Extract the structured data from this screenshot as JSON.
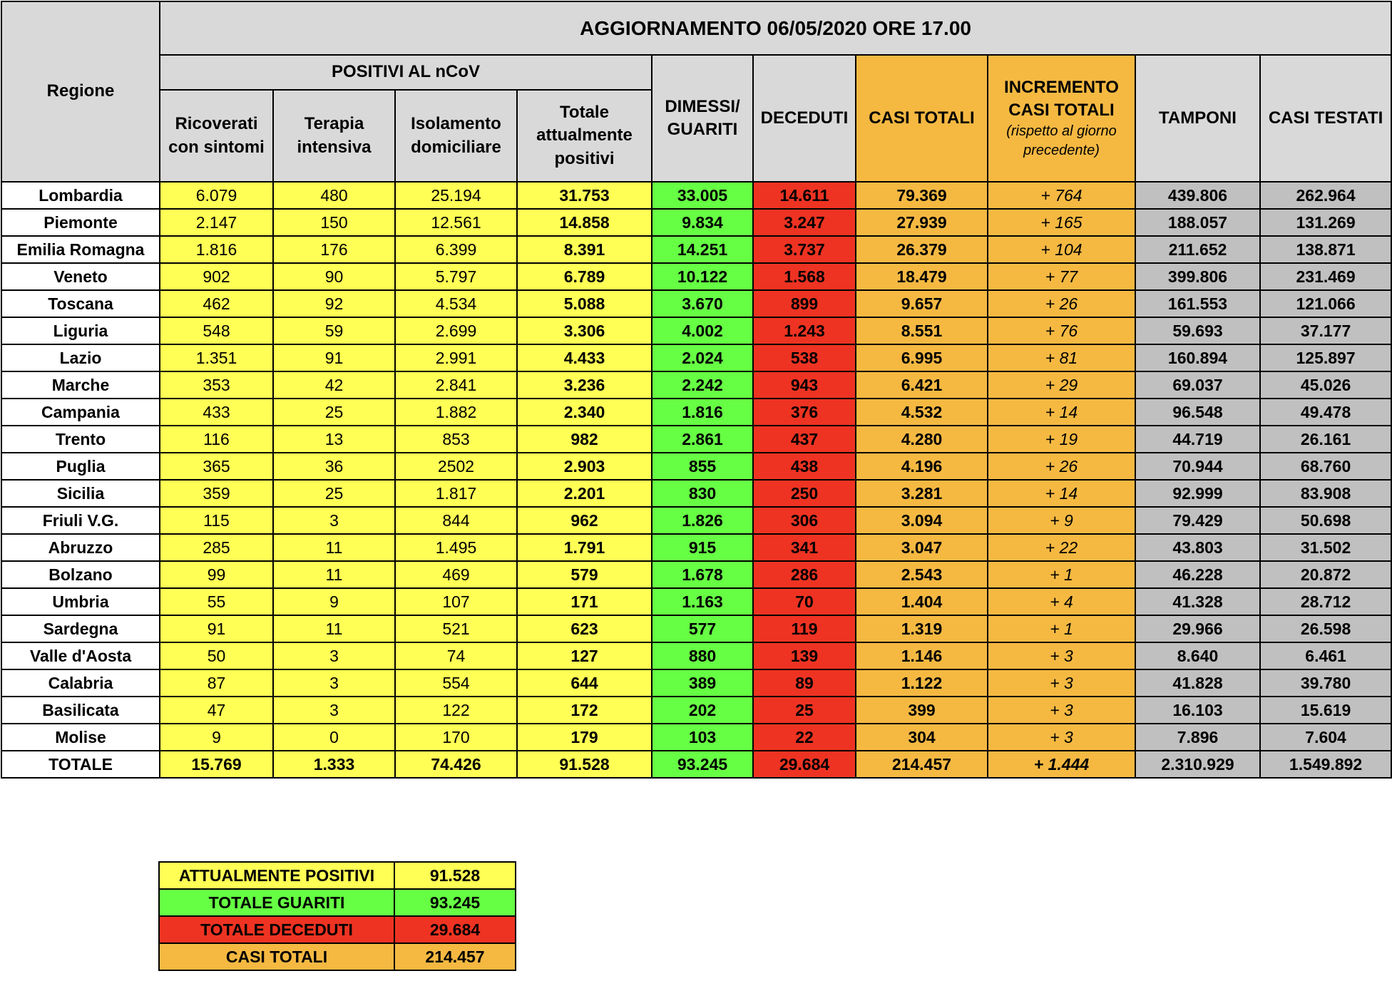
{
  "header": {
    "title": "AGGIORNAMENTO 06/05/2020 ORE 17.00",
    "regione": "Regione",
    "group": "POSITIVI AL nCoV",
    "columns": [
      "Ricoverati con sintomi",
      "Terapia intensiva",
      "Isolamento domiciliare",
      "Totale attualmente positivi",
      "DIMESSI/ GUARITI",
      "DECEDUTI",
      "CASI TOTALI",
      "INCREMENTO CASI TOTALI",
      "TAMPONI",
      "CASI TESTATI"
    ],
    "note": "(rispetto al giorno precedente)"
  },
  "table": {
    "rows": [
      [
        "Lombardia",
        "6.079",
        "480",
        "25.194",
        "31.753",
        "33.005",
        "14.611",
        "79.369",
        "+ 764",
        "439.806",
        "262.964"
      ],
      [
        "Piemonte",
        "2.147",
        "150",
        "12.561",
        "14.858",
        "9.834",
        "3.247",
        "27.939",
        "+ 165",
        "188.057",
        "131.269"
      ],
      [
        "Emilia Romagna",
        "1.816",
        "176",
        "6.399",
        "8.391",
        "14.251",
        "3.737",
        "26.379",
        "+ 104",
        "211.652",
        "138.871"
      ],
      [
        "Veneto",
        "902",
        "90",
        "5.797",
        "6.789",
        "10.122",
        "1.568",
        "18.479",
        "+ 77",
        "399.806",
        "231.469"
      ],
      [
        "Toscana",
        "462",
        "92",
        "4.534",
        "5.088",
        "3.670",
        "899",
        "9.657",
        "+ 26",
        "161.553",
        "121.066"
      ],
      [
        "Liguria",
        "548",
        "59",
        "2.699",
        "3.306",
        "4.002",
        "1.243",
        "8.551",
        "+ 76",
        "59.693",
        "37.177"
      ],
      [
        "Lazio",
        "1.351",
        "91",
        "2.991",
        "4.433",
        "2.024",
        "538",
        "6.995",
        "+ 81",
        "160.894",
        "125.897"
      ],
      [
        "Marche",
        "353",
        "42",
        "2.841",
        "3.236",
        "2.242",
        "943",
        "6.421",
        "+ 29",
        "69.037",
        "45.026"
      ],
      [
        "Campania",
        "433",
        "25",
        "1.882",
        "2.340",
        "1.816",
        "376",
        "4.532",
        "+ 14",
        "96.548",
        "49.478"
      ],
      [
        "Trento",
        "116",
        "13",
        "853",
        "982",
        "2.861",
        "437",
        "4.280",
        "+ 19",
        "44.719",
        "26.161"
      ],
      [
        "Puglia",
        "365",
        "36",
        "2502",
        "2.903",
        "855",
        "438",
        "4.196",
        "+ 26",
        "70.944",
        "68.760"
      ],
      [
        "Sicilia",
        "359",
        "25",
        "1.817",
        "2.201",
        "830",
        "250",
        "3.281",
        "+ 14",
        "92.999",
        "83.908"
      ],
      [
        "Friuli V.G.",
        "115",
        "3",
        "844",
        "962",
        "1.826",
        "306",
        "3.094",
        "+ 9",
        "79.429",
        "50.698"
      ],
      [
        "Abruzzo",
        "285",
        "11",
        "1.495",
        "1.791",
        "915",
        "341",
        "3.047",
        "+ 22",
        "43.803",
        "31.502"
      ],
      [
        "Bolzano",
        "99",
        "11",
        "469",
        "579",
        "1.678",
        "286",
        "2.543",
        "+ 1",
        "46.228",
        "20.872"
      ],
      [
        "Umbria",
        "55",
        "9",
        "107",
        "171",
        "1.163",
        "70",
        "1.404",
        "+ 4",
        "41.328",
        "28.712"
      ],
      [
        "Sardegna",
        "91",
        "11",
        "521",
        "623",
        "577",
        "119",
        "1.319",
        "+ 1",
        "29.966",
        "26.598"
      ],
      [
        "Valle d'Aosta",
        "50",
        "3",
        "74",
        "127",
        "880",
        "139",
        "1.146",
        "+ 3",
        "8.640",
        "6.461"
      ],
      [
        "Calabria",
        "87",
        "3",
        "554",
        "644",
        "389",
        "89",
        "1.122",
        "+ 3",
        "41.828",
        "39.780"
      ],
      [
        "Basilicata",
        "47",
        "3",
        "122",
        "172",
        "202",
        "25",
        "399",
        "+ 3",
        "16.103",
        "15.619"
      ],
      [
        "Molise",
        "9",
        "0",
        "170",
        "179",
        "103",
        "22",
        "304",
        "+ 3",
        "7.896",
        "7.604"
      ]
    ],
    "total": [
      "TOTALE",
      "15.769",
      "1.333",
      "74.426",
      "91.528",
      "93.245",
      "29.684",
      "214.457",
      "+ 1.444",
      "2.310.929",
      "1.549.892"
    ]
  },
  "summary": [
    [
      "ATTUALMENTE POSITIVI",
      "91.528"
    ],
    [
      "TOTALE GUARITI",
      "93.245"
    ],
    [
      "TOTALE DECEDUTI",
      "29.684"
    ],
    [
      "CASI TOTALI",
      "214.457"
    ]
  ]
}
